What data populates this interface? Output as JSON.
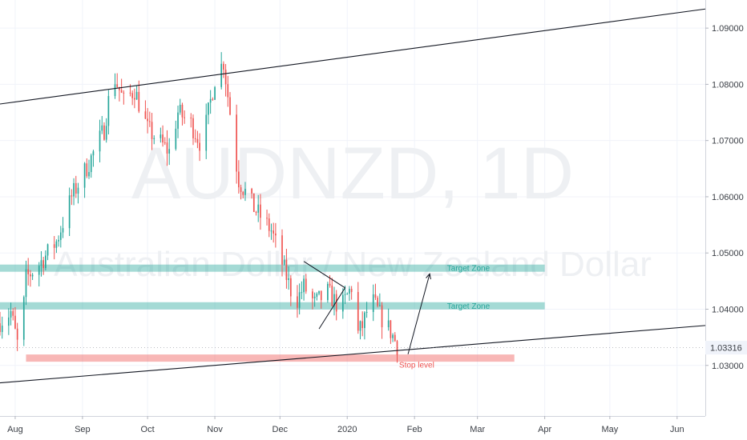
{
  "chart_data": {
    "type": "candlestick",
    "symbol": "AUDNZD",
    "interval": "1D",
    "subtitle": "Australian Dollar / New Zealand Dollar",
    "last_price": "1.03316",
    "y_axis": {
      "ticks": [
        "1.09000",
        "1.08000",
        "1.07000",
        "1.06000",
        "1.05000",
        "1.04000",
        "1.03000"
      ],
      "tick_values": [
        1.09,
        1.08,
        1.07,
        1.06,
        1.05,
        1.04,
        1.03
      ],
      "range": [
        1.021,
        1.095
      ]
    },
    "x_axis": {
      "labels": [
        "Aug",
        "Sep",
        "Oct",
        "Nov",
        "Dec",
        "2020",
        "Feb",
        "Mar",
        "Apr",
        "May",
        "Jun"
      ],
      "dates": [
        "2019-08-01",
        "2019-09-01",
        "2019-10-01",
        "2019-11-01",
        "2019-12-01",
        "2020-01-01",
        "2020-02-01",
        "2020-03-01",
        "2020-04-01",
        "2020-05-01",
        "2020-06-01"
      ],
      "range": [
        "2019-07-25",
        "2020-06-14"
      ]
    },
    "path": [
      [
        "2019-07-25",
        1.0375
      ],
      [
        "2019-07-31",
        1.0395
      ],
      [
        "2019-08-04",
        1.032
      ],
      [
        "2019-08-07",
        1.0455
      ],
      [
        "2019-08-13",
        1.048
      ],
      [
        "2019-08-21",
        1.052
      ],
      [
        "2019-08-28",
        1.06
      ],
      [
        "2019-09-05",
        1.066
      ],
      [
        "2019-09-12",
        1.072
      ],
      [
        "2019-09-16",
        1.082
      ],
      [
        "2019-09-21",
        1.077
      ],
      [
        "2019-09-26",
        1.079
      ],
      [
        "2019-10-02",
        1.072
      ],
      [
        "2019-10-07",
        1.07
      ],
      [
        "2019-10-12",
        1.068
      ],
      [
        "2019-10-16",
        1.075
      ],
      [
        "2019-10-22",
        1.073
      ],
      [
        "2019-10-27",
        1.069
      ],
      [
        "2019-11-02",
        1.081
      ],
      [
        "2019-11-06",
        1.084
      ],
      [
        "2019-11-09",
        1.075
      ],
      [
        "2019-11-11",
        1.068
      ],
      [
        "2019-11-13",
        1.063
      ],
      [
        "2019-11-20",
        1.058
      ],
      [
        "2019-11-28",
        1.054
      ],
      [
        "2019-12-04",
        1.047
      ],
      [
        "2019-12-09",
        1.041
      ],
      [
        "2019-12-13",
        1.044
      ],
      [
        "2019-12-18",
        1.041
      ],
      [
        "2019-12-24",
        1.043
      ],
      [
        "2019-12-30",
        1.04
      ],
      [
        "2020-01-04",
        1.044
      ],
      [
        "2020-01-06",
        1.035
      ],
      [
        "2020-01-09",
        1.037
      ],
      [
        "2020-01-13",
        1.042
      ],
      [
        "2020-01-17",
        1.039
      ],
      [
        "2020-01-22",
        1.036
      ],
      [
        "2020-01-26",
        1.0328
      ]
    ],
    "colors": {
      "up": "#26a69a",
      "down": "#ef5350"
    },
    "annotations": [
      {
        "kind": "trendline",
        "name": "channel-top",
        "points": [
          [
            "2019-07-25",
            1.0765
          ],
          [
            "2020-06-14",
            1.0934
          ]
        ]
      },
      {
        "kind": "trendline",
        "name": "channel-bottom",
        "points": [
          [
            "2019-07-25",
            1.0269
          ],
          [
            "2020-06-14",
            1.0371
          ]
        ]
      },
      {
        "kind": "zone",
        "name": "target-zone-upper",
        "label": "Target Zone",
        "from": "2019-07-25",
        "to": "2020-04-01",
        "level": 1.0473,
        "color": "#26a69a"
      },
      {
        "kind": "zone",
        "name": "target-zone-lower",
        "label": "Target Zone",
        "from": "2019-07-25",
        "to": "2020-04-01",
        "level": 1.0406,
        "color": "#26a69a"
      },
      {
        "kind": "zone",
        "name": "stop-zone",
        "label": "Stop level",
        "from": "2019-08-06",
        "to": "2020-03-18",
        "level": 1.0313,
        "color": "#ef5350"
      },
      {
        "kind": "arrow",
        "name": "projection-arrow",
        "points": [
          [
            "2020-01-29",
            1.032
          ],
          [
            "2020-02-08",
            1.0463
          ]
        ]
      },
      {
        "kind": "triangle",
        "name": "pennant",
        "points": [
          [
            "2019-12-12",
            1.0485
          ],
          [
            "2019-12-31",
            1.0438
          ],
          [
            "2019-12-19",
            1.0365
          ]
        ]
      }
    ]
  }
}
